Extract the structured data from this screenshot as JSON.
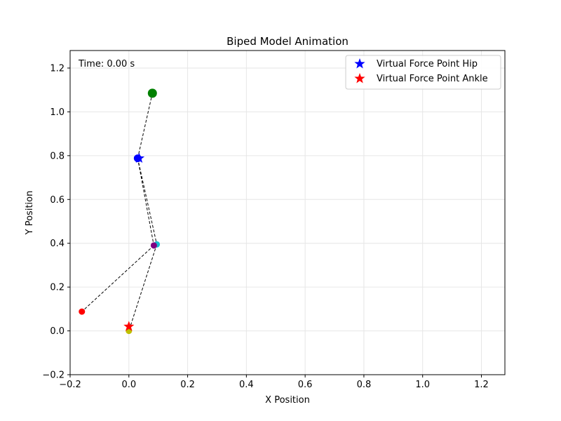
{
  "chart_data": {
    "type": "scatter",
    "title": "Biped Model Animation",
    "xlabel": "X Position",
    "ylabel": "Y Position",
    "xlim": [
      -0.2,
      1.28
    ],
    "ylim": [
      -0.2,
      1.28
    ],
    "xticks": [
      -0.2,
      0.0,
      0.2,
      0.4,
      0.6,
      0.8,
      1.0,
      1.2
    ],
    "yticks": [
      -0.2,
      0.0,
      0.2,
      0.4,
      0.6,
      0.8,
      1.0,
      1.2
    ],
    "xtick_labels": [
      "−0.2",
      "0.0",
      "0.2",
      "0.4",
      "0.6",
      "0.8",
      "1.0",
      "1.2"
    ],
    "ytick_labels": [
      "−0.2",
      "0.0",
      "0.2",
      "0.4",
      "0.6",
      "0.8",
      "1.0",
      "1.2"
    ],
    "grid": true,
    "annotation": "Time: 0.00 s",
    "legend_position": "top-right",
    "legend": [
      {
        "label": "Virtual Force Point Hip",
        "color": "#0000ff",
        "marker": "star"
      },
      {
        "label": "Virtual Force Point Ankle",
        "color": "#ff0000",
        "marker": "star"
      }
    ],
    "segments": [
      {
        "from": [
          0.08,
          1.085
        ],
        "to": [
          0.03,
          0.788
        ]
      },
      {
        "from": [
          0.03,
          0.788
        ],
        "to": [
          0.095,
          0.395
        ]
      },
      {
        "from": [
          0.03,
          0.788
        ],
        "to": [
          0.085,
          0.39
        ]
      },
      {
        "from": [
          0.085,
          0.39
        ],
        "to": [
          -0.16,
          0.088
        ]
      },
      {
        "from": [
          0.095,
          0.395
        ],
        "to": [
          0.0,
          0.0
        ]
      }
    ],
    "points": [
      {
        "x": 0.08,
        "y": 1.085,
        "color": "#008000",
        "marker": "circle",
        "size": "large"
      },
      {
        "x": 0.03,
        "y": 0.788,
        "color": "#0000ff",
        "marker": "circle",
        "size": "medium"
      },
      {
        "x": 0.095,
        "y": 0.395,
        "color": "#17becf",
        "marker": "circle",
        "size": "small"
      },
      {
        "x": 0.085,
        "y": 0.39,
        "color": "#800080",
        "marker": "circle",
        "size": "small"
      },
      {
        "x": -0.16,
        "y": 0.088,
        "color": "#ff0000",
        "marker": "circle",
        "size": "small"
      },
      {
        "x": 0.0,
        "y": 0.0,
        "color": "#bfbf00",
        "marker": "circle",
        "size": "small"
      }
    ],
    "virtual_points": [
      {
        "name": "Virtual Force Point Hip",
        "x": 0.035,
        "y": 0.788,
        "color": "#0000ff",
        "marker": "star"
      },
      {
        "name": "Virtual Force Point Ankle",
        "x": 0.0,
        "y": 0.02,
        "color": "#ff0000",
        "marker": "star"
      }
    ]
  }
}
